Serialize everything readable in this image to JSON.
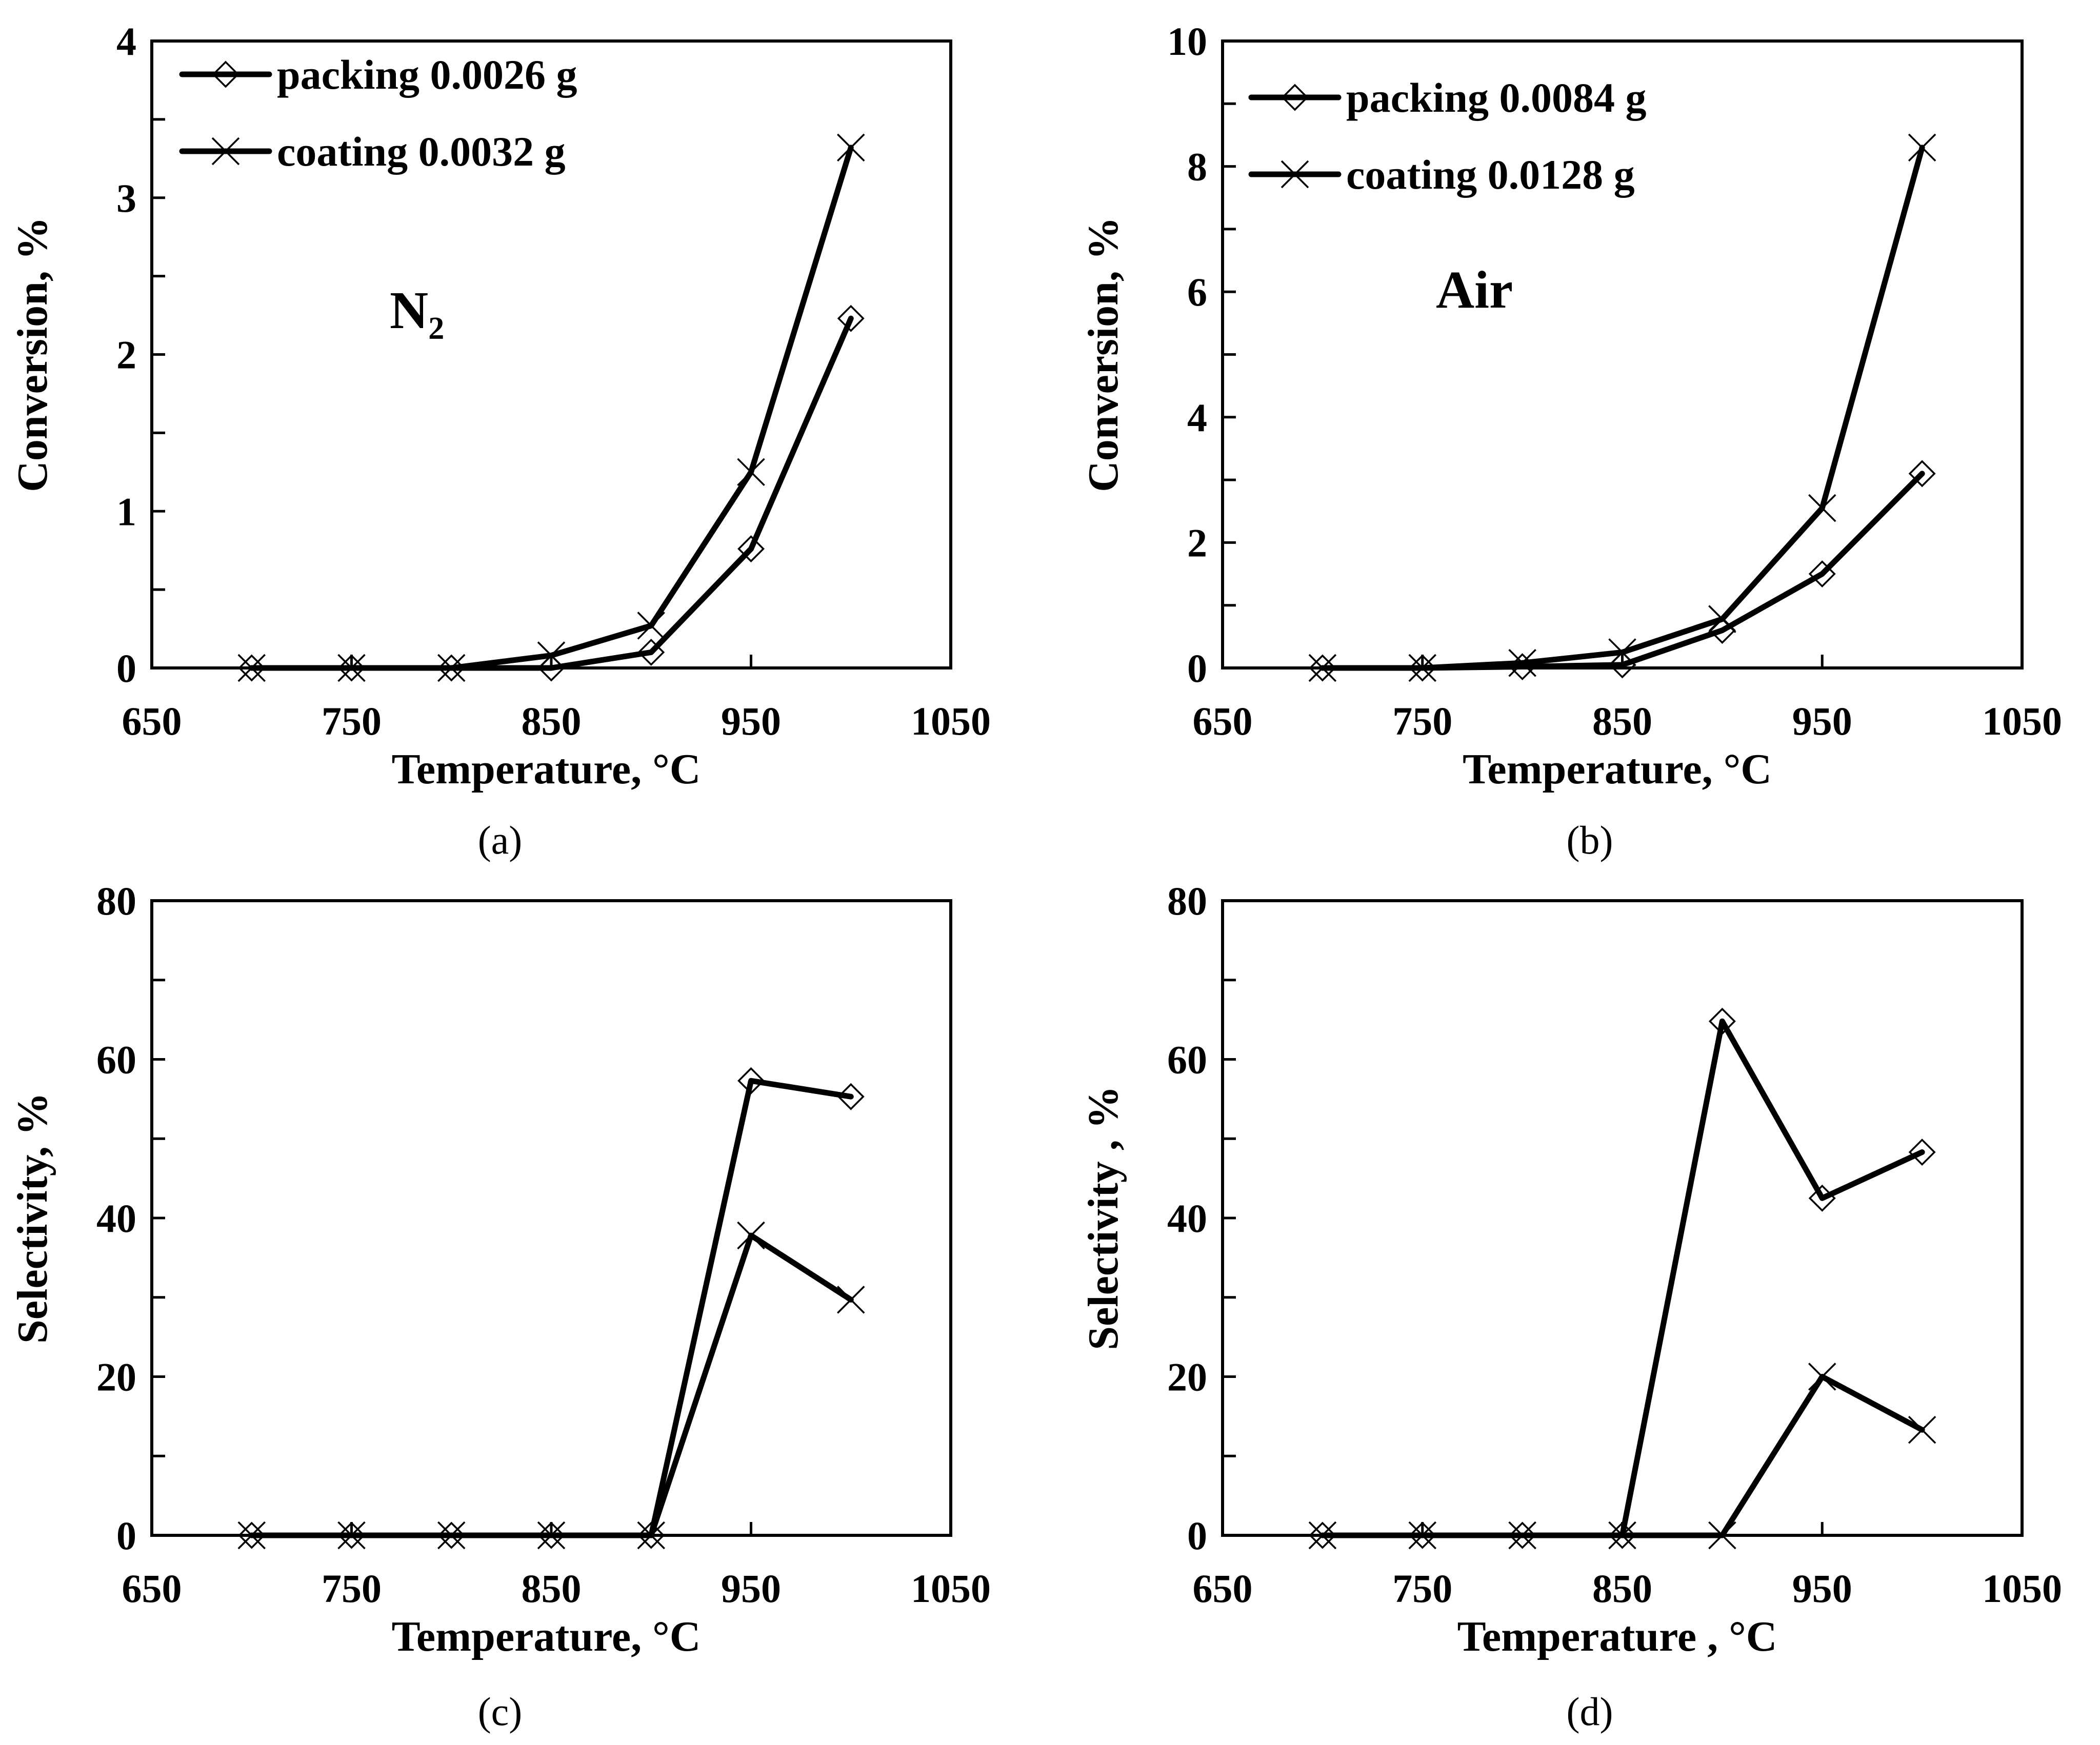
{
  "chart_data": [
    {
      "type": "line",
      "panel": "(a)",
      "annotation": "N₂",
      "xlabel": "Temperature, ",
      "xunit": "°C",
      "ylabel": "Conversion, %",
      "xlim": [
        650,
        1050
      ],
      "ylim": [
        0,
        4
      ],
      "xticks": [
        "650",
        "750",
        "850",
        "950",
        "1050"
      ],
      "yticks": [
        "0",
        "1",
        "2",
        "3",
        "4"
      ],
      "x": [
        700,
        750,
        800,
        850,
        900,
        950,
        1000
      ],
      "series": [
        {
          "name": "packing 0.0026 g",
          "marker": "diamond",
          "values": [
            0,
            0,
            0,
            0,
            0.1,
            0.76,
            2.23
          ]
        },
        {
          "name": "coating 0.0032 g",
          "marker": "x",
          "values": [
            0,
            0,
            0,
            0.08,
            0.27,
            1.25,
            3.32
          ]
        }
      ],
      "legend_position": "top-left"
    },
    {
      "type": "line",
      "panel": "(b)",
      "annotation": "Air",
      "xlabel": "Temperature,  ",
      "xunit": "°C",
      "ylabel": "Conversion,  %",
      "xlim": [
        650,
        1050
      ],
      "ylim": [
        0,
        10
      ],
      "xticks": [
        "650",
        "750",
        "850",
        "950",
        "1050"
      ],
      "yticks": [
        "0",
        "2",
        "4",
        "6",
        "8",
        "10"
      ],
      "x": [
        700,
        750,
        800,
        850,
        900,
        950,
        1000
      ],
      "series": [
        {
          "name": "packing 0.0084 g",
          "marker": "diamond",
          "values": [
            0,
            0,
            0.02,
            0.05,
            0.6,
            1.5,
            3.1
          ]
        },
        {
          "name": "coating 0.0128 g",
          "marker": "x",
          "values": [
            0,
            0,
            0.08,
            0.25,
            0.78,
            2.55,
            8.3
          ]
        }
      ],
      "legend_position": "top-left"
    },
    {
      "type": "line",
      "panel": "(c)",
      "xlabel": "Temperature, ",
      "xunit": "°C",
      "ylabel": "Selectivity, %",
      "xlim": [
        650,
        1050
      ],
      "ylim": [
        0,
        80
      ],
      "xticks": [
        "650",
        "750",
        "850",
        "950",
        "1050"
      ],
      "yticks": [
        "0",
        "20",
        "40",
        "60",
        "80"
      ],
      "x": [
        700,
        750,
        800,
        850,
        900,
        950,
        1000
      ],
      "series": [
        {
          "name": "packing",
          "marker": "diamond",
          "values": [
            0,
            0,
            0,
            0,
            0,
            57.3,
            55.3
          ]
        },
        {
          "name": "coating",
          "marker": "x",
          "values": [
            0,
            0,
            0,
            0,
            0,
            37.8,
            29.7
          ]
        }
      ]
    },
    {
      "type": "line",
      "panel": "(d)",
      "xlabel": "Temperature , ",
      "xunit": "°C",
      "ylabel": "Selectivity ,  %",
      "xlim": [
        650,
        1050
      ],
      "ylim": [
        0,
        80
      ],
      "xticks": [
        "650",
        "750",
        "850",
        "950",
        "1050"
      ],
      "yticks": [
        "0",
        "20",
        "40",
        "60",
        "80"
      ],
      "x": [
        700,
        750,
        800,
        850,
        900,
        950,
        1000
      ],
      "series": [
        {
          "name": "packing",
          "marker": "diamond",
          "values": [
            0,
            0,
            0,
            0,
            64.8,
            42.5,
            48.3
          ]
        },
        {
          "name": "coating",
          "marker": "x",
          "values": [
            0,
            0,
            0,
            0,
            0,
            20.0,
            13.3
          ]
        }
      ]
    }
  ],
  "colors": {
    "line": "#000000",
    "background": "#ffffff"
  }
}
